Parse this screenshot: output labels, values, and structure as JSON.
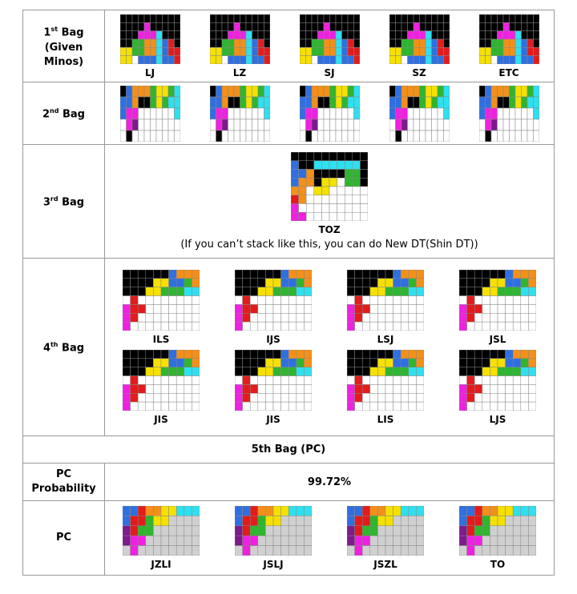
{
  "rows": [
    {
      "label": {
        "ordinal": "1",
        "suffix": "st",
        "text": "Bag (Given Minos)"
      },
      "boards": [
        "LJ",
        "LZ",
        "SJ",
        "SZ",
        "ETC"
      ]
    },
    {
      "label": {
        "ordinal": "2",
        "suffix": "nd",
        "text": "Bag"
      }
    },
    {
      "label": {
        "ordinal": "3",
        "suffix": "rd",
        "text": "Bag"
      },
      "boards": [
        "TOZ"
      ],
      "note": "(If you can’t stack like this, you can do New DT(Shin DT))"
    },
    {
      "label": {
        "ordinal": "4",
        "suffix": "th",
        "text": "Bag"
      },
      "boards": [
        "ILS",
        "IJS",
        "LSJ",
        "JSL",
        "JIS",
        "JIS",
        "LIS",
        "LJS"
      ]
    },
    {
      "heading": "5th Bag (PC)"
    },
    {
      "label": {
        "text": "PC Probability"
      },
      "value": "99.72%"
    },
    {
      "label": {
        "text": "PC"
      },
      "boards": [
        "JZLI",
        "JSLJ",
        "JSZL",
        "TO"
      ]
    }
  ]
}
